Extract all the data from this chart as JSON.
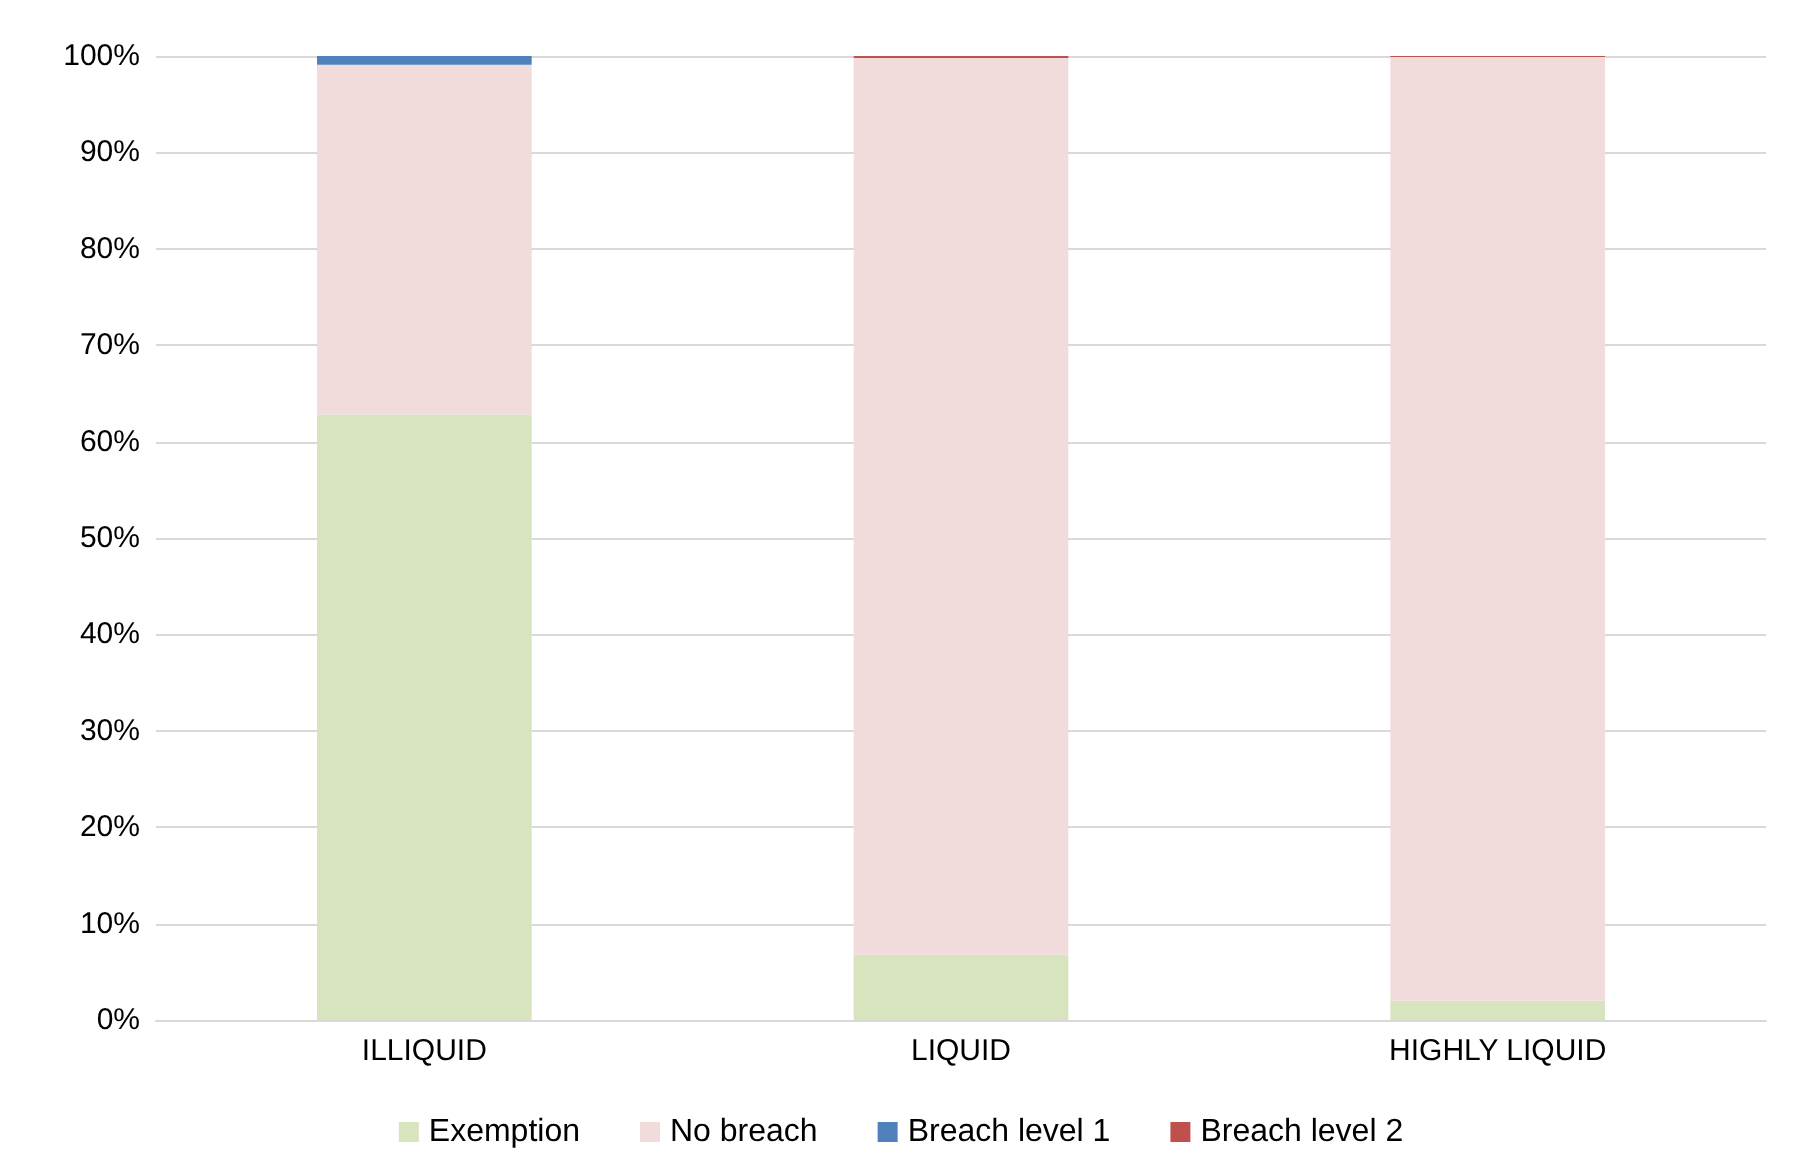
{
  "chart_data": {
    "type": "bar",
    "stacked": true,
    "categories": [
      "ILLIQUID",
      "LIQUID",
      "HIGHLY LIQUID"
    ],
    "series": [
      {
        "name": "Exemption",
        "color": "#d7e4bd",
        "values": [
          62.8,
          6.8,
          2.0
        ]
      },
      {
        "name": "No breach",
        "color": "#f2dcdb",
        "values": [
          36.3,
          93.0,
          97.9
        ]
      },
      {
        "name": "Breach level 1",
        "color": "#4f81bd",
        "values": [
          0.9,
          0,
          0
        ]
      },
      {
        "name": "Breach level 2",
        "color": "#c0504d",
        "values": [
          0,
          0.2,
          0.1
        ]
      }
    ],
    "ylim": [
      0,
      100
    ],
    "yticks": [
      {
        "value": 0,
        "label": "0%"
      },
      {
        "value": 10,
        "label": "10%"
      },
      {
        "value": 20,
        "label": "20%"
      },
      {
        "value": 30,
        "label": "30%"
      },
      {
        "value": 40,
        "label": "40%"
      },
      {
        "value": 50,
        "label": "50%"
      },
      {
        "value": 60,
        "label": "60%"
      },
      {
        "value": 70,
        "label": "70%"
      },
      {
        "value": 80,
        "label": "80%"
      },
      {
        "value": 90,
        "label": "90%"
      },
      {
        "value": 100,
        "label": "100%"
      }
    ],
    "grid": "y",
    "legend": "bottom"
  }
}
